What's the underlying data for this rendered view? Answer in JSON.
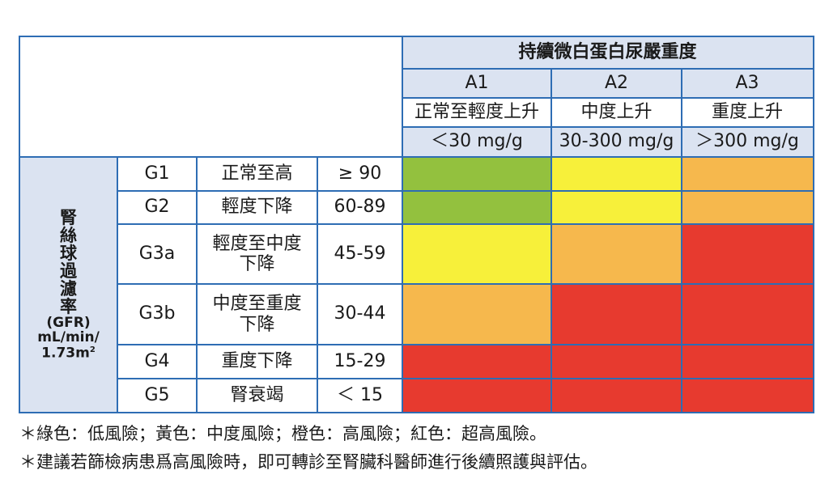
{
  "header": {
    "title": "持續微白蛋白尿嚴重度",
    "categories": [
      {
        "code": "A1",
        "name": "正常至輕度上升",
        "range": "＜30 mg/g"
      },
      {
        "code": "A2",
        "name": "中度上升",
        "range": "30-300 mg/g"
      },
      {
        "code": "A3",
        "name": "重度上升",
        "range": "＞300 mg/g"
      }
    ]
  },
  "side_label": {
    "chars": [
      "腎",
      "絲",
      "球",
      "過",
      "濾",
      "率"
    ],
    "abbr": "(GFR)",
    "unit_line1": "mL/min/",
    "unit_line2": "1.73m",
    "unit_sup": "2"
  },
  "rows": [
    {
      "stage": "G1",
      "desc": [
        "正常至高"
      ],
      "range": "≥ 90"
    },
    {
      "stage": "G2",
      "desc": [
        "輕度下降"
      ],
      "range": "60-89"
    },
    {
      "stage": "G3a",
      "desc": [
        "輕度至中度",
        "下降"
      ],
      "range": "45-59"
    },
    {
      "stage": "G3b",
      "desc": [
        "中度至重度",
        "下降"
      ],
      "range": "30-44"
    },
    {
      "stage": "G4",
      "desc": [
        "重度下降"
      ],
      "range": "15-29"
    },
    {
      "stage": "G5",
      "desc": [
        "腎衰竭"
      ],
      "range": "＜ 15"
    }
  ],
  "risk_colors": {
    "green": "#93c13e",
    "yellow": "#f7f03a",
    "orange": "#f6b84d",
    "red": "#e73a2f"
  },
  "risk_matrix": [
    [
      "green",
      "yellow",
      "orange"
    ],
    [
      "green",
      "yellow",
      "orange"
    ],
    [
      "yellow",
      "orange",
      "red"
    ],
    [
      "orange",
      "red",
      "red"
    ],
    [
      "red",
      "red",
      "red"
    ],
    [
      "red",
      "red",
      "red"
    ]
  ],
  "notes": [
    "＊綠色：低風險；黃色：中度風險；橙色：高風險；紅色：超高風險。",
    "＊建議若篩檢病患爲高風險時，即可轉診至腎臟科醫師進行後續照護與評估。"
  ]
}
